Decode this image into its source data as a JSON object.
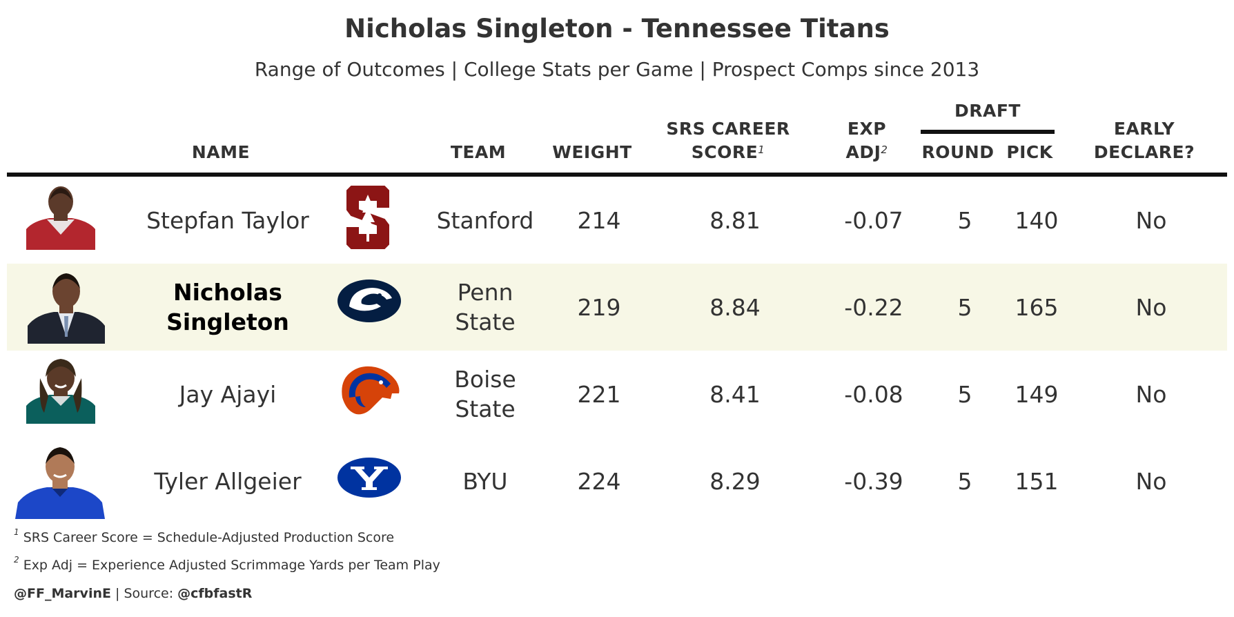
{
  "title": "Nicholas Singleton - Tennessee Titans",
  "subtitle": "Range of Outcomes | College Stats per Game | Prospect Comps since 2013",
  "headers": {
    "name": "NAME",
    "team": "TEAM",
    "weight": "WEIGHT",
    "srs_line1": "SRS CAREER",
    "srs_line2": "SCORE",
    "srs_note": "1",
    "exp_line1": "EXP",
    "exp_line2": "ADJ",
    "exp_note": "2",
    "draft": "DRAFT",
    "round": "ROUND",
    "pick": "PICK",
    "early_line1": "EARLY",
    "early_line2": "DECLARE?"
  },
  "rows": [
    {
      "name": "Stepfan Taylor",
      "team": "Stanford",
      "weight": "214",
      "srs": "8.81",
      "exp_adj": "-0.07",
      "round": "5",
      "pick": "140",
      "early_declare": "No",
      "logo_icon": "stanford-logo-icon",
      "jersey_color": "#b3262e"
    },
    {
      "name": "Nicholas Singleton",
      "team": "Penn State",
      "weight": "219",
      "srs": "8.84",
      "exp_adj": "-0.22",
      "round": "5",
      "pick": "165",
      "early_declare": "No",
      "logo_icon": "penn-state-logo-icon",
      "jersey_color": "#1f2430"
    },
    {
      "name": "Jay Ajayi",
      "team": "Boise State",
      "weight": "221",
      "srs": "8.41",
      "exp_adj": "-0.08",
      "round": "5",
      "pick": "149",
      "early_declare": "No",
      "logo_icon": "boise-state-logo-icon",
      "jersey_color": "#0b5f5c"
    },
    {
      "name": "Tyler Allgeier",
      "team": "BYU",
      "weight": "224",
      "srs": "8.29",
      "exp_adj": "-0.39",
      "round": "5",
      "pick": "151",
      "early_declare": "No",
      "logo_icon": "byu-logo-icon",
      "jersey_color": "#1c47c8"
    }
  ],
  "footnotes": [
    {
      "mark": "1",
      "text": "SRS Career Score = Schedule-Adjusted Production Score"
    },
    {
      "mark": "2",
      "text": "Exp Adj = Experience Adjusted Scrimmage Yards per Team Play"
    }
  ],
  "credit": {
    "handle": "@FF_MarvinE",
    "separator": " | Source: ",
    "source": "@cfbfastR"
  },
  "colors": {
    "highlight_row": "#f7f7e6",
    "stanford": "#8c1515",
    "penn_state": "#041e42",
    "boise_state_orange": "#d64309",
    "boise_state_blue": "#0033a0",
    "byu": "#0033a0"
  }
}
